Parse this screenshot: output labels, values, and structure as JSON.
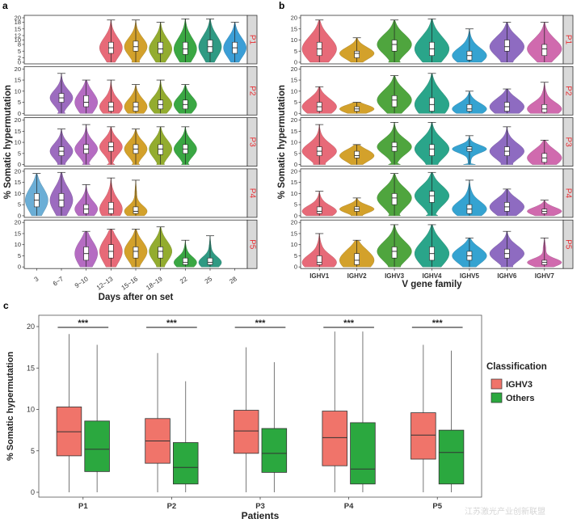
{
  "watermark": "江苏激光产业创新联盟",
  "chart_data": [
    {
      "panel": "a",
      "type": "violin",
      "xlabel": "Days after on set",
      "ylabel": "% Somatic hypermutation",
      "categories": [
        "3",
        "6~7",
        "9~10",
        "12~13",
        "15~16",
        "18~19",
        "22",
        "25",
        "28"
      ],
      "category_colors": [
        "#6baed6",
        "#9c6bbf",
        "#b56cc2",
        "#e76a78",
        "#d3a12b",
        "#93ac2f",
        "#3aa743",
        "#2f9a83",
        "#3b9ed6"
      ],
      "ylim": [
        0,
        20
      ],
      "yticks": [
        0,
        5,
        10,
        15,
        20
      ],
      "facets": [
        {
          "label": "P1",
          "ylim": [
            0,
            20
          ],
          "yticks": [
            0,
            2,
            5,
            8,
            10,
            12,
            15,
            18,
            20
          ],
          "yticklabels": [
            "0",
            "2",
            "5",
            "8",
            "10",
            "12",
            "15",
            "18",
            "20"
          ],
          "violins": [
            {
              "category": "12~13",
              "median": 6.5,
              "q1": 4,
              "q3": 9,
              "min": 0,
              "max": 19
            },
            {
              "category": "15~16",
              "median": 7,
              "q1": 5,
              "q3": 9.5,
              "min": 0,
              "max": 19
            },
            {
              "category": "18~19",
              "median": 6,
              "q1": 4,
              "q3": 9,
              "min": 0,
              "max": 18
            },
            {
              "category": "22",
              "median": 6,
              "q1": 3.5,
              "q3": 9,
              "min": 0,
              "max": 19.5
            },
            {
              "category": "25",
              "median": 7,
              "q1": 4.5,
              "q3": 10,
              "min": 0,
              "max": 19.5
            },
            {
              "category": "28",
              "median": 6.5,
              "q1": 4,
              "q3": 9,
              "min": 0,
              "max": 18
            }
          ]
        },
        {
          "label": "P2",
          "ylim": [
            0,
            20
          ],
          "yticks": [
            0,
            5,
            10,
            15,
            20
          ],
          "yticklabels": [
            "0",
            "5",
            "10",
            "15",
            "20"
          ],
          "violins": [
            {
              "category": "6~7",
              "median": 7,
              "q1": 5,
              "q3": 9,
              "min": 0,
              "max": 18
            },
            {
              "category": "9~10",
              "median": 5,
              "q1": 3,
              "q3": 8,
              "min": 0,
              "max": 15
            },
            {
              "category": "12~13",
              "median": 3,
              "q1": 1,
              "q3": 5,
              "min": 0,
              "max": 15
            },
            {
              "category": "15~16",
              "median": 3,
              "q1": 1,
              "q3": 5,
              "min": 0,
              "max": 13
            },
            {
              "category": "18~19",
              "median": 4,
              "q1": 2,
              "q3": 6,
              "min": 0,
              "max": 15
            },
            {
              "category": "22",
              "median": 4,
              "q1": 2,
              "q3": 6,
              "min": 0,
              "max": 13
            }
          ]
        },
        {
          "label": "P3",
          "ylim": [
            0,
            20
          ],
          "yticks": [
            0,
            5,
            10,
            15,
            20
          ],
          "yticklabels": [
            "0",
            "5",
            "10",
            "15",
            "20"
          ],
          "violins": [
            {
              "category": "6~7",
              "median": 6,
              "q1": 4,
              "q3": 8,
              "min": 0,
              "max": 16
            },
            {
              "category": "9~10",
              "median": 7,
              "q1": 5,
              "q3": 9,
              "min": 0,
              "max": 18
            },
            {
              "category": "12~13",
              "median": 8,
              "q1": 6,
              "q3": 10,
              "min": 0,
              "max": 17
            },
            {
              "category": "15~16",
              "median": 7,
              "q1": 5,
              "q3": 9,
              "min": 0,
              "max": 16
            },
            {
              "category": "18~19",
              "median": 7,
              "q1": 4.5,
              "q3": 9,
              "min": 0,
              "max": 17
            },
            {
              "category": "22",
              "median": 7,
              "q1": 5,
              "q3": 9,
              "min": 0,
              "max": 17
            }
          ]
        },
        {
          "label": "P4",
          "ylim": [
            0,
            20
          ],
          "yticks": [
            0,
            5,
            10,
            15,
            20
          ],
          "yticklabels": [
            "0",
            "5",
            "10",
            "15",
            "20"
          ],
          "violins": [
            {
              "category": "3",
              "median": 7,
              "q1": 4,
              "q3": 10,
              "min": 0,
              "max": 19
            },
            {
              "category": "6~7",
              "median": 7,
              "q1": 4,
              "q3": 10,
              "min": 0,
              "max": 19.5
            },
            {
              "category": "9~10",
              "median": 3,
              "q1": 1,
              "q3": 5,
              "min": 0,
              "max": 14
            },
            {
              "category": "12~13",
              "median": 3,
              "q1": 1,
              "q3": 6,
              "min": 0,
              "max": 17
            },
            {
              "category": "15~16",
              "median": 2,
              "q1": 1,
              "q3": 4,
              "min": 0,
              "max": 16
            }
          ]
        },
        {
          "label": "P5",
          "ylim": [
            0,
            20
          ],
          "yticks": [
            0,
            5,
            10,
            15,
            20
          ],
          "yticklabels": [
            "0",
            "5",
            "10",
            "15",
            "20"
          ],
          "violins": [
            {
              "category": "9~10",
              "median": 6,
              "q1": 3,
              "q3": 9,
              "min": 0,
              "max": 16
            },
            {
              "category": "12~13",
              "median": 7,
              "q1": 4,
              "q3": 10,
              "min": 0,
              "max": 17
            },
            {
              "category": "15~16",
              "median": 7,
              "q1": 4,
              "q3": 9,
              "min": 0,
              "max": 17
            },
            {
              "category": "18~19",
              "median": 7,
              "q1": 4,
              "q3": 9,
              "min": 0,
              "max": 18
            },
            {
              "category": "22",
              "median": 2,
              "q1": 1,
              "q3": 4,
              "min": 0,
              "max": 12
            },
            {
              "category": "25",
              "median": 2,
              "q1": 1,
              "q3": 4,
              "min": 0,
              "max": 14
            }
          ]
        }
      ]
    },
    {
      "panel": "b",
      "type": "violin",
      "xlabel": "V gene family",
      "ylabel": "% Somatic hypermutation",
      "categories": [
        "IGHV1",
        "IGHV2",
        "IGHV3",
        "IGHV4",
        "IGHV5",
        "IGHV6",
        "IGHV7"
      ],
      "category_colors": [
        "#e76a78",
        "#d3a12b",
        "#4fa53e",
        "#2aa58a",
        "#35a3d1",
        "#8e6bc1",
        "#d06aae"
      ],
      "facets": [
        {
          "label": "P1",
          "ylim": [
            0,
            20
          ],
          "yticks": [
            0,
            5,
            10,
            15,
            20
          ],
          "yticklabels": [
            "0",
            "5",
            "10",
            "15",
            "20"
          ],
          "violins": [
            {
              "category": "IGHV1",
              "median": 6,
              "q1": 3,
              "q3": 9,
              "min": 0,
              "max": 19
            },
            {
              "category": "IGHV2",
              "median": 4,
              "q1": 2,
              "q3": 5,
              "min": 0,
              "max": 11
            },
            {
              "category": "IGHV3",
              "median": 8,
              "q1": 5,
              "q3": 10,
              "min": 0,
              "max": 19
            },
            {
              "category": "IGHV4",
              "median": 6,
              "q1": 3,
              "q3": 9,
              "min": 0,
              "max": 19.5
            },
            {
              "category": "IGHV5",
              "median": 3,
              "q1": 1,
              "q3": 5,
              "min": 0,
              "max": 15
            },
            {
              "category": "IGHV6",
              "median": 7,
              "q1": 5,
              "q3": 10,
              "min": 0,
              "max": 18
            },
            {
              "category": "IGHV7",
              "median": 6,
              "q1": 3,
              "q3": 8,
              "min": 0,
              "max": 18
            }
          ]
        },
        {
          "label": "P2",
          "ylim": [
            0,
            20
          ],
          "yticks": [
            0,
            5,
            10,
            15,
            20
          ],
          "yticklabels": [
            "0",
            "5",
            "10",
            "15",
            "20"
          ],
          "violins": [
            {
              "category": "IGHV1",
              "median": 3,
              "q1": 1,
              "q3": 5,
              "min": 0,
              "max": 12
            },
            {
              "category": "IGHV2",
              "median": 2,
              "q1": 1,
              "q3": 3,
              "min": 0,
              "max": 5
            },
            {
              "category": "IGHV3",
              "median": 6,
              "q1": 3,
              "q3": 8,
              "min": 0,
              "max": 17
            },
            {
              "category": "IGHV4",
              "median": 4,
              "q1": 1,
              "q3": 7,
              "min": 0,
              "max": 18
            },
            {
              "category": "IGHV5",
              "median": 2,
              "q1": 1,
              "q3": 4,
              "min": 0,
              "max": 10
            },
            {
              "category": "IGHV6",
              "median": 3,
              "q1": 1,
              "q3": 5,
              "min": 0,
              "max": 11
            },
            {
              "category": "IGHV7",
              "median": 2,
              "q1": 0.5,
              "q3": 4,
              "min": 0,
              "max": 14
            }
          ]
        },
        {
          "label": "P3",
          "ylim": [
            0,
            20
          ],
          "yticks": [
            0,
            5,
            10,
            15,
            20
          ],
          "yticklabels": [
            "0",
            "5",
            "10",
            "15",
            "20"
          ],
          "violins": [
            {
              "category": "IGHV1",
              "median": 6,
              "q1": 4,
              "q3": 8,
              "min": 0,
              "max": 18
            },
            {
              "category": "IGHV2",
              "median": 4,
              "q1": 3,
              "q3": 6,
              "min": 0,
              "max": 9
            },
            {
              "category": "IGHV3",
              "median": 8,
              "q1": 6,
              "q3": 10,
              "min": 0,
              "max": 19
            },
            {
              "category": "IGHV4",
              "median": 7,
              "q1": 4,
              "q3": 9,
              "min": 0,
              "max": 19
            },
            {
              "category": "IGHV5",
              "median": 7,
              "q1": 6,
              "q3": 8,
              "min": 0,
              "max": 13
            },
            {
              "category": "IGHV6",
              "median": 6,
              "q1": 4,
              "q3": 8,
              "min": 0,
              "max": 17
            },
            {
              "category": "IGHV7",
              "median": 3,
              "q1": 1,
              "q3": 5,
              "min": 0,
              "max": 11
            }
          ]
        },
        {
          "label": "P4",
          "ylim": [
            0,
            20
          ],
          "yticks": [
            0,
            5,
            10,
            15,
            20
          ],
          "yticklabels": [
            "0",
            "5",
            "10",
            "15",
            "20"
          ],
          "violins": [
            {
              "category": "IGHV1",
              "median": 2,
              "q1": 1,
              "q3": 4,
              "min": 0,
              "max": 11
            },
            {
              "category": "IGHV2",
              "median": 3,
              "q1": 2,
              "q3": 4,
              "min": 0,
              "max": 8
            },
            {
              "category": "IGHV3",
              "median": 8,
              "q1": 5,
              "q3": 10,
              "min": 0,
              "max": 19
            },
            {
              "category": "IGHV4",
              "median": 9,
              "q1": 6,
              "q3": 11,
              "min": 0,
              "max": 19.5
            },
            {
              "category": "IGHV5",
              "median": 3,
              "q1": 1,
              "q3": 5,
              "min": 0,
              "max": 16
            },
            {
              "category": "IGHV6",
              "median": 4,
              "q1": 2,
              "q3": 6,
              "min": 0,
              "max": 12
            },
            {
              "category": "IGHV7",
              "median": 2,
              "q1": 1,
              "q3": 3,
              "min": 0,
              "max": 7
            }
          ]
        },
        {
          "label": "P5",
          "ylim": [
            0,
            20
          ],
          "yticks": [
            0,
            5,
            10,
            15,
            20
          ],
          "yticklabels": [
            "0",
            "5",
            "10",
            "15",
            "20"
          ],
          "violins": [
            {
              "category": "IGHV1",
              "median": 2,
              "q1": 1,
              "q3": 5,
              "min": 0,
              "max": 15
            },
            {
              "category": "IGHV2",
              "median": 3,
              "q1": 1,
              "q3": 6,
              "min": 0,
              "max": 12
            },
            {
              "category": "IGHV3",
              "median": 7,
              "q1": 4,
              "q3": 9,
              "min": 0,
              "max": 19
            },
            {
              "category": "IGHV4",
              "median": 6,
              "q1": 3,
              "q3": 9,
              "min": 0,
              "max": 19
            },
            {
              "category": "IGHV5",
              "median": 5,
              "q1": 3,
              "q3": 7,
              "min": 0,
              "max": 13
            },
            {
              "category": "IGHV6",
              "median": 6,
              "q1": 4,
              "q3": 8,
              "min": 0,
              "max": 16
            },
            {
              "category": "IGHV7",
              "median": 2,
              "q1": 1,
              "q3": 3,
              "min": 0,
              "max": 13
            }
          ]
        }
      ]
    },
    {
      "panel": "c",
      "type": "box",
      "xlabel": "Patients",
      "ylabel": "% Somatic hypermutation",
      "categories": [
        "P1",
        "P2",
        "P3",
        "P4",
        "P5"
      ],
      "ylim": [
        0,
        20
      ],
      "yticks": [
        0,
        5,
        10,
        15,
        20
      ],
      "legend": {
        "title": "Classification",
        "position": "right"
      },
      "significance": [
        "***",
        "***",
        "***",
        "***",
        "***"
      ],
      "series": [
        {
          "name": "IGHV3",
          "color": "#f0746a",
          "boxes": [
            {
              "min": 0,
              "q1": 4.4,
              "median": 7.3,
              "q3": 10.3,
              "max": 19.1
            },
            {
              "min": 0,
              "q1": 3.5,
              "median": 6.2,
              "q3": 8.9,
              "max": 16.8
            },
            {
              "min": 0,
              "q1": 4.7,
              "median": 7.4,
              "q3": 9.9,
              "max": 17.5
            },
            {
              "min": 0,
              "q1": 3.2,
              "median": 6.6,
              "q3": 9.8,
              "max": 19.4
            },
            {
              "min": 0,
              "q1": 4.0,
              "median": 6.9,
              "q3": 9.6,
              "max": 17.8
            }
          ]
        },
        {
          "name": "Others",
          "color": "#2ba83f",
          "boxes": [
            {
              "min": 0,
              "q1": 2.5,
              "median": 5.2,
              "q3": 8.6,
              "max": 17.8
            },
            {
              "min": 0,
              "q1": 1.0,
              "median": 3.0,
              "q3": 6.0,
              "max": 13.4
            },
            {
              "min": 0,
              "q1": 2.4,
              "median": 4.7,
              "q3": 7.7,
              "max": 15.7
            },
            {
              "min": 0,
              "q1": 1.0,
              "median": 2.8,
              "q3": 8.4,
              "max": 19.4
            },
            {
              "min": 0,
              "q1": 1.0,
              "median": 4.8,
              "q3": 7.5,
              "max": 17.1
            }
          ]
        }
      ]
    }
  ]
}
